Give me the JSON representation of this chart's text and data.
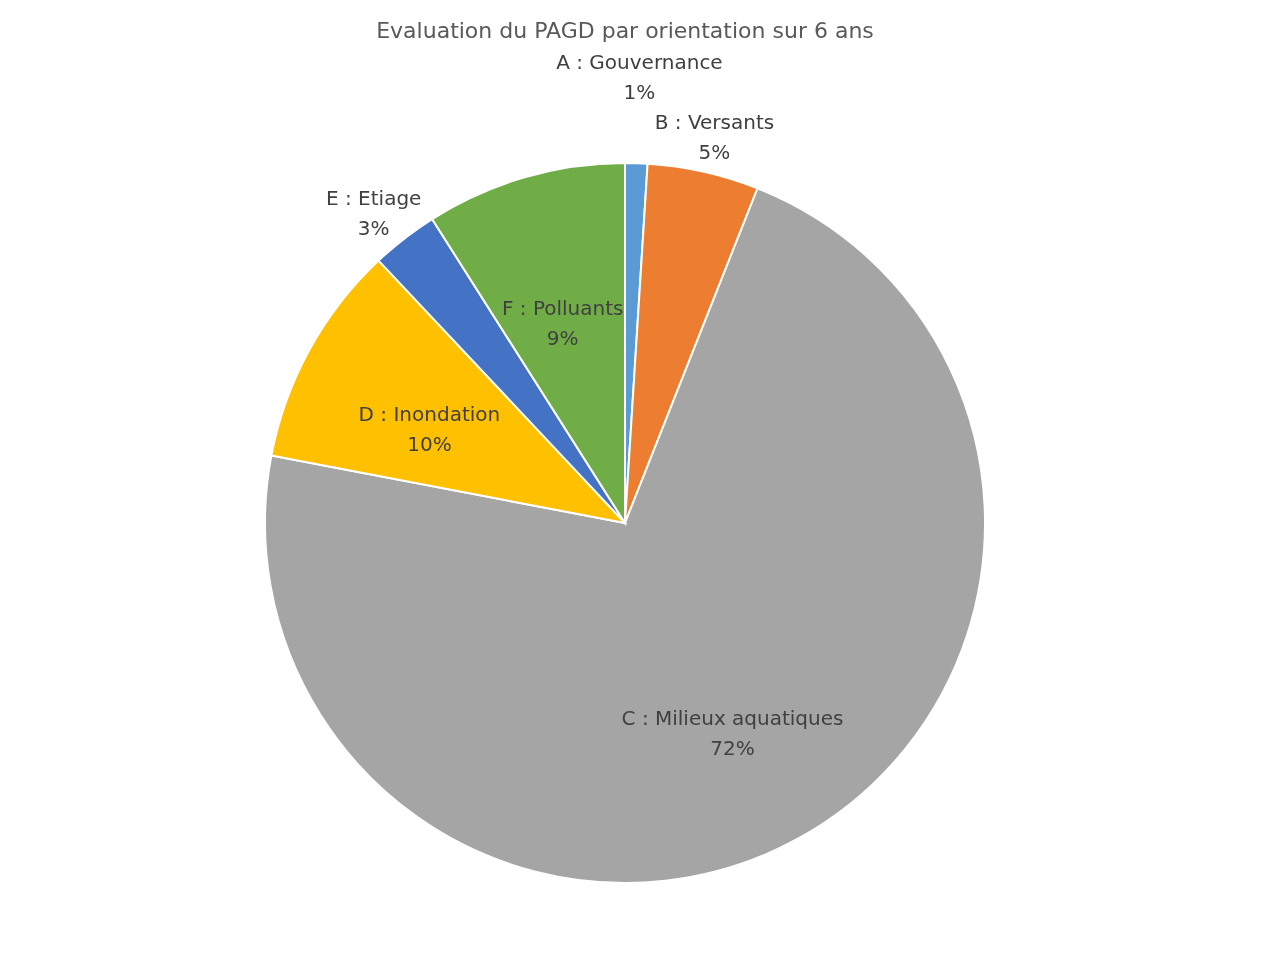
{
  "chart_data": {
    "type": "pie",
    "title": "Evaluation du PAGD par orientation sur 6 ans",
    "categories": [
      "A : Gouvernance",
      "B : Versants",
      "C : Milieux aquatiques",
      "D : Inondation",
      "E : Etiage",
      "F : Polluants"
    ],
    "values": [
      1,
      5,
      72,
      10,
      3,
      9
    ],
    "value_labels": [
      "1%",
      "5%",
      "72%",
      "10%",
      "3%",
      "9%"
    ],
    "colors": [
      "#5b9bd5",
      "#ed7d31",
      "#a5a5a5",
      "#ffc000",
      "#4472c4",
      "#70ad47"
    ],
    "legend": false
  }
}
